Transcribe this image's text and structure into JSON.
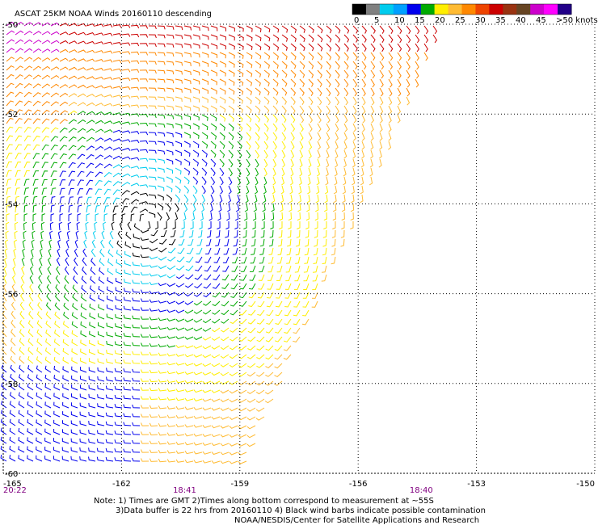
{
  "chart_data": {
    "type": "scatter",
    "title": "ASCAT 25KM NOAA Winds 20160110 descending",
    "legend": {
      "tick_labels": [
        "0",
        "5",
        "10",
        "15",
        "20",
        "25",
        "30",
        "35",
        "40",
        "45",
        ">50 knots"
      ],
      "colors": [
        "#000000",
        "#808080",
        "#00ccee",
        "#00a0ff",
        "#0000ee",
        "#00aa00",
        "#ffee00",
        "#ffbb33",
        "#ff8800",
        "#ee4400",
        "#cc0000",
        "#993311",
        "#664422",
        "#cc00cc",
        "#ff00ff",
        "#220088"
      ]
    },
    "x_ticks": [
      "-165",
      "-162",
      "-159",
      "-156",
      "-153",
      "-150"
    ],
    "y_ticks": [
      "-50",
      "-52",
      "-54",
      "-56",
      "-58",
      "-60"
    ],
    "xlim": [
      -165,
      -150
    ],
    "ylim": [
      -60,
      -50
    ],
    "grid": "dotted",
    "time_labels": [
      {
        "text": "20:22",
        "lon": -165.0,
        "color": "#800080"
      },
      {
        "text": "18:41",
        "lon": -160.4,
        "color": "#800080"
      },
      {
        "text": "18:40",
        "lon": -154.4,
        "color": "#800080"
      }
    ],
    "swath_region_description_colors": {
      "0-5": "#000000",
      "5-10": "#00ccee",
      "10-15": "#0000ee",
      "15-20": "#00aa00",
      "20-25": "#ffee00",
      "25-30": "#ffbb33",
      "30-35": "#ff8800",
      "35-40": "#cc0000",
      "40-45": "#664422",
      "45-50": "#cc00cc"
    }
  },
  "notes": [
    "Note: 1) Times are GMT 2)Times along bottom correspond to measurement at ~55S",
    "3)Data buffer is 22 hrs from 20160110 4) Black wind barbs indicate possible contamination",
    "NOAA/NESDIS/Center for Satellite Applications and Research"
  ]
}
